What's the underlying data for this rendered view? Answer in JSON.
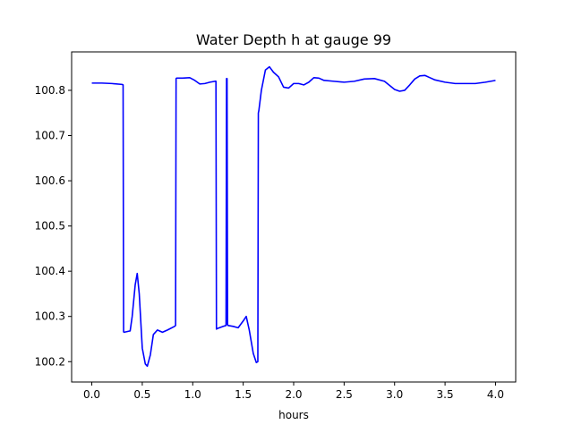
{
  "chart_data": {
    "type": "line",
    "title": "Water Depth h at gauge 99",
    "xlabel": "hours",
    "ylabel": "",
    "xlim": [
      -0.2,
      4.2
    ],
    "ylim": [
      100.155,
      100.885
    ],
    "xticks": [
      0.0,
      0.5,
      1.0,
      1.5,
      2.0,
      2.5,
      3.0,
      3.5,
      4.0
    ],
    "xtick_labels": [
      "0.0",
      "0.5",
      "1.0",
      "1.5",
      "2.0",
      "2.5",
      "3.0",
      "3.5",
      "4.0"
    ],
    "yticks": [
      100.2,
      100.3,
      100.4,
      100.5,
      100.6,
      100.7,
      100.8
    ],
    "ytick_labels": [
      "100.2",
      "100.3",
      "100.4",
      "100.5",
      "100.6",
      "100.7",
      "100.8"
    ],
    "grid": false,
    "colors": {
      "line": "#0000ff",
      "axes": "#000000",
      "background": "#ffffff"
    },
    "series": [
      {
        "x": [
          0.0,
          0.1,
          0.2,
          0.3,
          0.31,
          0.315,
          0.32,
          0.38,
          0.4,
          0.43,
          0.45,
          0.47,
          0.5,
          0.53,
          0.55,
          0.58,
          0.61,
          0.65,
          0.7,
          0.75,
          0.82,
          0.83,
          0.835,
          0.84,
          0.9,
          0.97,
          1.02,
          1.07,
          1.12,
          1.17,
          1.22,
          1.23,
          1.235,
          1.24,
          1.3,
          1.33,
          1.335,
          1.34,
          1.345,
          1.35,
          1.4,
          1.45,
          1.5,
          1.53,
          1.56,
          1.6,
          1.63,
          1.645,
          1.65,
          1.655,
          1.68,
          1.72,
          1.76,
          1.8,
          1.85,
          1.9,
          1.95,
          2.0,
          2.05,
          2.1,
          2.15,
          2.2,
          2.25,
          2.3,
          2.4,
          2.5,
          2.6,
          2.7,
          2.8,
          2.9,
          3.0,
          3.05,
          3.1,
          3.15,
          3.2,
          3.25,
          3.3,
          3.35,
          3.4,
          3.5,
          3.6,
          3.7,
          3.8,
          3.9,
          4.0
        ],
        "y": [
          100.816,
          100.816,
          100.815,
          100.813,
          100.812,
          100.266,
          100.265,
          100.268,
          100.3,
          100.37,
          100.395,
          100.35,
          100.23,
          100.195,
          100.19,
          100.215,
          100.26,
          100.27,
          100.265,
          100.27,
          100.278,
          100.28,
          100.826,
          100.827,
          100.827,
          100.828,
          100.822,
          100.814,
          100.815,
          100.818,
          100.82,
          100.82,
          100.272,
          100.273,
          100.278,
          100.28,
          100.826,
          100.826,
          100.282,
          100.28,
          100.278,
          100.275,
          100.29,
          100.3,
          100.27,
          100.218,
          100.198,
          100.2,
          100.75,
          100.755,
          100.8,
          100.845,
          100.852,
          100.84,
          100.83,
          100.807,
          100.805,
          100.815,
          100.815,
          100.812,
          100.818,
          100.828,
          100.827,
          100.822,
          100.82,
          100.818,
          100.82,
          100.825,
          100.826,
          100.82,
          100.802,
          100.798,
          100.8,
          100.812,
          100.825,
          100.832,
          100.833,
          100.828,
          100.823,
          100.818,
          100.815,
          100.815,
          100.815,
          100.818,
          100.822
        ]
      }
    ]
  }
}
